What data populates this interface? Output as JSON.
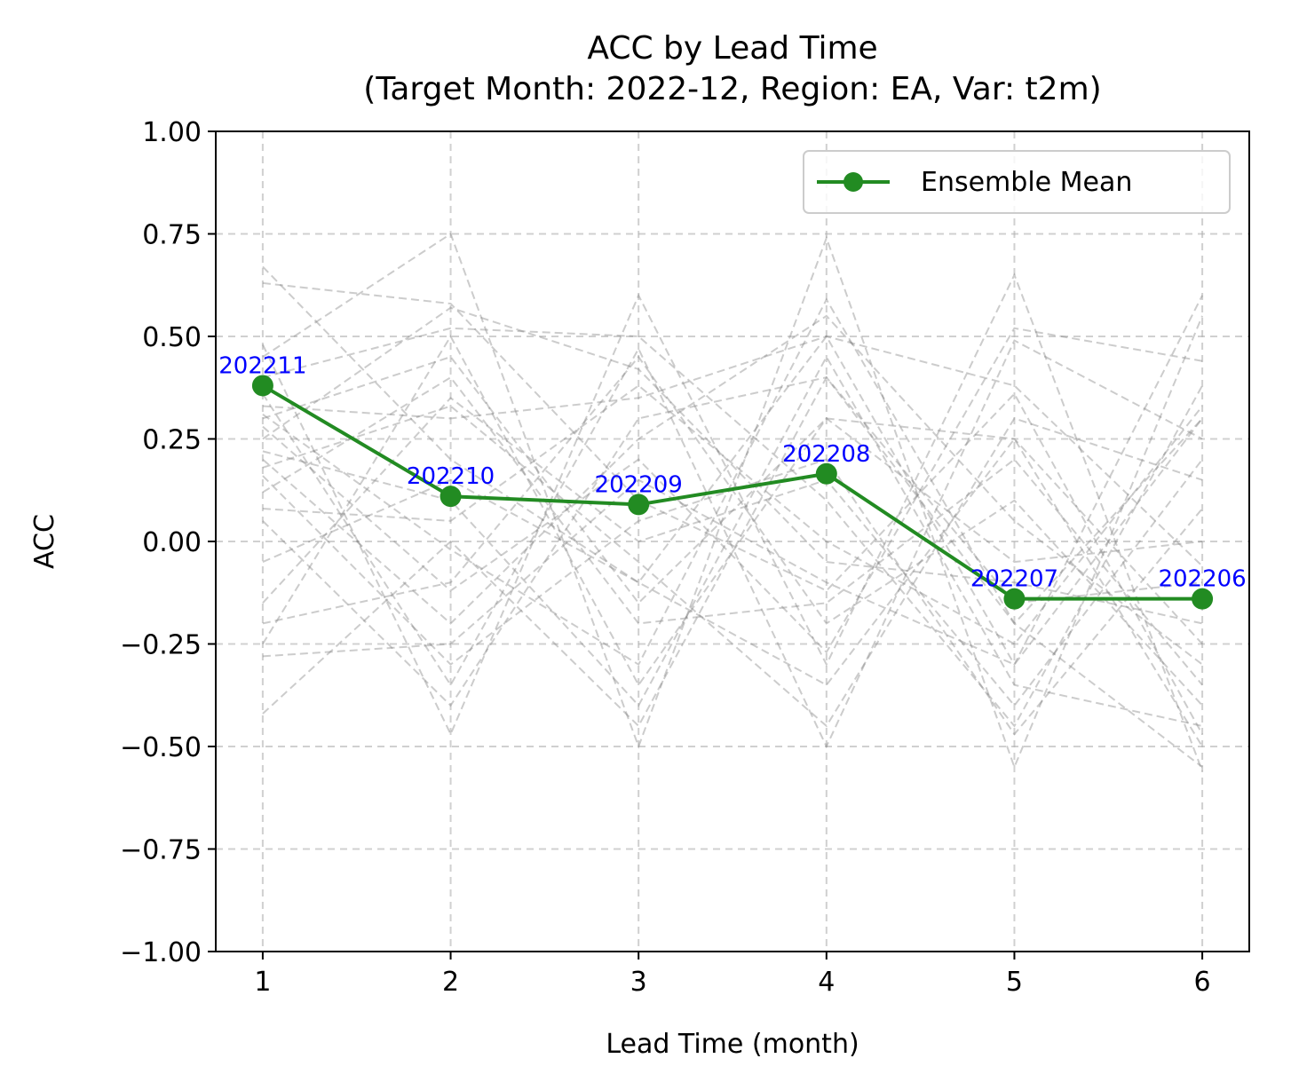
{
  "chart_data": {
    "type": "line",
    "title": "ACC by Lead Time",
    "subtitle": "(Target Month: 2022-12, Region: EA, Var: t2m)",
    "xlabel": "Lead Time (month)",
    "ylabel": "ACC",
    "xlim": [
      0.75,
      6.25
    ],
    "ylim": [
      -1.0,
      1.0
    ],
    "x_ticks": [
      1,
      2,
      3,
      4,
      5,
      6
    ],
    "x_tick_labels": [
      "1",
      "2",
      "3",
      "4",
      "5",
      "6"
    ],
    "y_ticks": [
      -1.0,
      -0.75,
      -0.5,
      -0.25,
      0.0,
      0.25,
      0.5,
      0.75,
      1.0
    ],
    "y_tick_labels": [
      "−1.00",
      "−0.75",
      "−0.50",
      "−0.25",
      "0.00",
      "0.25",
      "0.50",
      "0.75",
      "1.00"
    ],
    "grid": true,
    "legend_position": "upper right",
    "series": [
      {
        "name": "Ensemble Mean",
        "color": "#228b22",
        "marker": "circle",
        "x": [
          1,
          2,
          3,
          4,
          5,
          6
        ],
        "y": [
          0.38,
          0.11,
          0.09,
          0.165,
          -0.14,
          -0.14
        ],
        "point_labels": [
          "202211",
          "202210",
          "202209",
          "202208",
          "202207",
          "202206"
        ]
      }
    ],
    "member_series": {
      "color": "#808080",
      "style": "dashed",
      "x": [
        1,
        2,
        3,
        4,
        5,
        6
      ],
      "values": [
        [
          0.67,
          0.2,
          -0.1,
          0.5,
          -0.3,
          0.6
        ],
        [
          0.63,
          0.58,
          0.1,
          -0.12,
          0.36,
          -0.47
        ],
        [
          0.48,
          -0.47,
          0.6,
          -0.3,
          0.65,
          -0.56
        ],
        [
          0.45,
          0.75,
          -0.5,
          0.74,
          -0.55,
          0.55
        ],
        [
          0.4,
          0.52,
          0.5,
          0.1,
          -0.45,
          0.38
        ],
        [
          0.36,
          -0.35,
          0.47,
          -0.5,
          0.49,
          0.25
        ],
        [
          0.33,
          0.3,
          0.35,
          0.5,
          0.38,
          -0.06
        ],
        [
          0.31,
          -0.02,
          -0.3,
          0.59,
          -0.2,
          0.3
        ],
        [
          0.3,
          0.45,
          -0.15,
          0.3,
          0.25,
          -0.25
        ],
        [
          0.28,
          -0.12,
          0.2,
          -0.27,
          0.52,
          0.44
        ],
        [
          0.25,
          0.57,
          0.42,
          -0.05,
          -0.1,
          -0.2
        ],
        [
          0.22,
          0.1,
          -0.4,
          0.45,
          -0.35,
          -0.45
        ],
        [
          0.2,
          -0.2,
          0.25,
          0.55,
          0.05,
          -0.3
        ],
        [
          0.18,
          0.33,
          -0.05,
          -0.45,
          0.3,
          0.15
        ],
        [
          0.16,
          -0.3,
          0.05,
          0.2,
          -0.47,
          0.08
        ],
        [
          0.12,
          0.4,
          -0.2,
          -0.15,
          0.2,
          -0.35
        ],
        [
          0.08,
          0.05,
          0.38,
          0.0,
          -0.25,
          0.33
        ],
        [
          0.05,
          -0.4,
          0.3,
          0.4,
          -0.15,
          -0.1
        ],
        [
          -0.05,
          0.15,
          -0.1,
          -0.35,
          0.25,
          -0.5
        ],
        [
          -0.15,
          0.35,
          0.0,
          0.15,
          -0.4,
          0.2
        ],
        [
          -0.2,
          -0.1,
          0.45,
          -0.2,
          0.1,
          -0.4
        ],
        [
          -0.25,
          0.5,
          -0.35,
          0.3,
          -0.05,
          0.0
        ],
        [
          -0.28,
          -0.25,
          0.15,
          -0.1,
          -0.3,
          0.3
        ],
        [
          -0.42,
          0.0,
          -0.45,
          0.4,
          -0.2,
          -0.55
        ]
      ]
    }
  }
}
